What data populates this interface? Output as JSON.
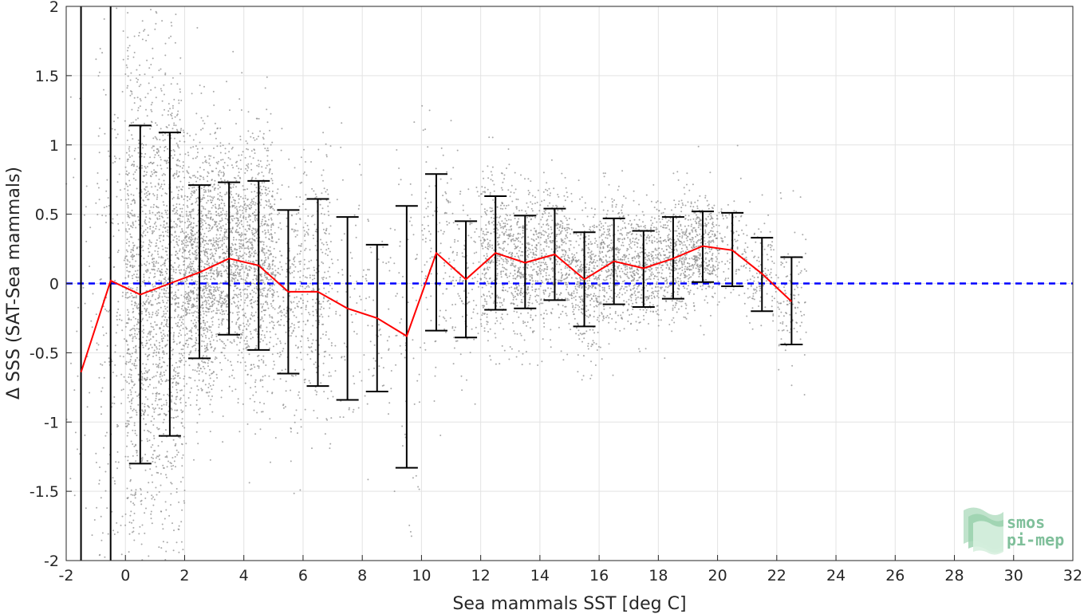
{
  "chart_data": {
    "type": "scatter",
    "xlabel": "Sea mammals SST [deg C]",
    "ylabel": "Δ SSS (SAT-Sea mammals)",
    "xlim": [
      -2,
      32
    ],
    "ylim": [
      -2,
      2
    ],
    "xticks": [
      -2,
      0,
      2,
      4,
      6,
      8,
      10,
      12,
      14,
      16,
      18,
      20,
      22,
      24,
      26,
      28,
      30,
      32
    ],
    "yticks": [
      -2,
      -1.5,
      -1,
      -0.5,
      0,
      0.5,
      1,
      1.5,
      2
    ],
    "xtick_labels": [
      "-2",
      "0",
      "2",
      "4",
      "6",
      "8",
      "10",
      "12",
      "14",
      "16",
      "18",
      "20",
      "22",
      "24",
      "26",
      "28",
      "30",
      "32"
    ],
    "ytick_labels": [
      "-2",
      "-1.5",
      "-1",
      "-0.5",
      "0",
      "0.5",
      "1",
      "1.5",
      "2"
    ],
    "grid": true,
    "reference_line": {
      "y": 0,
      "color": "#0000ff",
      "style": "dashed"
    },
    "scatter_color": "#8c8c8c",
    "mean_line_color": "#ff0000",
    "errorbar_color": "#000000",
    "bins": [
      {
        "x": -1.5,
        "mean": -0.64,
        "low": -2.0,
        "high": 2.0
      },
      {
        "x": -0.5,
        "mean": 0.02,
        "low": -2.0,
        "high": 2.0
      },
      {
        "x": 0.5,
        "mean": -0.08,
        "low": -1.3,
        "high": 1.14
      },
      {
        "x": 1.5,
        "mean": 0.0,
        "low": -1.1,
        "high": 1.09
      },
      {
        "x": 2.5,
        "mean": 0.08,
        "low": -0.54,
        "high": 0.71
      },
      {
        "x": 3.5,
        "mean": 0.18,
        "low": -0.37,
        "high": 0.73
      },
      {
        "x": 4.5,
        "mean": 0.13,
        "low": -0.48,
        "high": 0.74
      },
      {
        "x": 5.5,
        "mean": -0.06,
        "low": -0.65,
        "high": 0.53
      },
      {
        "x": 6.5,
        "mean": -0.06,
        "low": -0.74,
        "high": 0.61
      },
      {
        "x": 7.5,
        "mean": -0.18,
        "low": -0.84,
        "high": 0.48
      },
      {
        "x": 8.5,
        "mean": -0.25,
        "low": -0.78,
        "high": 0.28
      },
      {
        "x": 9.5,
        "mean": -0.38,
        "low": -1.33,
        "high": 0.56
      },
      {
        "x": 10.5,
        "mean": 0.22,
        "low": -0.34,
        "high": 0.79
      },
      {
        "x": 11.5,
        "mean": 0.03,
        "low": -0.39,
        "high": 0.45
      },
      {
        "x": 12.5,
        "mean": 0.22,
        "low": -0.19,
        "high": 0.63
      },
      {
        "x": 13.5,
        "mean": 0.15,
        "low": -0.18,
        "high": 0.49
      },
      {
        "x": 14.5,
        "mean": 0.21,
        "low": -0.12,
        "high": 0.54
      },
      {
        "x": 15.5,
        "mean": 0.03,
        "low": -0.31,
        "high": 0.37
      },
      {
        "x": 16.5,
        "mean": 0.16,
        "low": -0.15,
        "high": 0.47
      },
      {
        "x": 17.5,
        "mean": 0.11,
        "low": -0.17,
        "high": 0.38
      },
      {
        "x": 18.5,
        "mean": 0.18,
        "low": -0.11,
        "high": 0.48
      },
      {
        "x": 19.5,
        "mean": 0.27,
        "low": 0.01,
        "high": 0.52
      },
      {
        "x": 20.5,
        "mean": 0.24,
        "low": -0.02,
        "high": 0.51
      },
      {
        "x": 21.5,
        "mean": 0.07,
        "low": -0.2,
        "high": 0.33
      },
      {
        "x": 22.5,
        "mean": -0.13,
        "low": -0.44,
        "high": 0.19
      }
    ]
  },
  "logo": {
    "line1": "smos",
    "line2": "pi-mep"
  }
}
